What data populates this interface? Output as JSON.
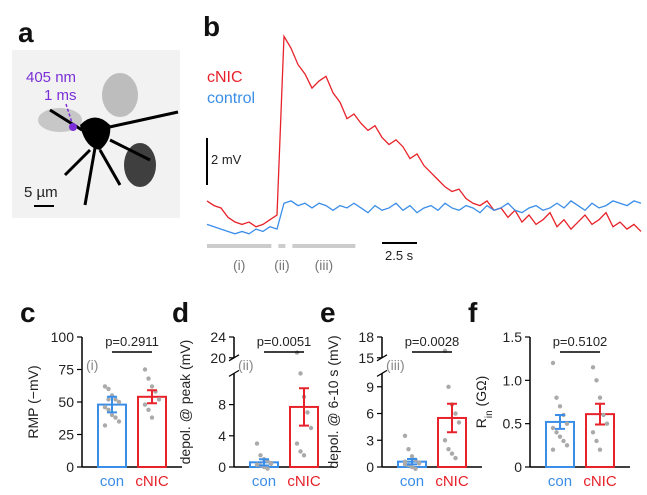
{
  "image_panel": {
    "label": "a",
    "wavelength": "405 nm",
    "duration": "1 ms",
    "scale_bar": "5 µm"
  },
  "chart_data": [
    {
      "type": "trace",
      "panel": "b",
      "x": [
        0,
        0.5,
        1,
        1.5,
        2,
        2.5,
        3,
        3.5,
        4,
        4.5,
        5,
        5.5,
        6,
        6.5,
        7,
        7.5,
        8,
        8.5,
        9,
        9.5,
        10,
        10.5,
        11,
        11.5,
        12,
        12.5,
        13,
        13.5,
        14,
        14.5,
        15,
        15.5,
        16,
        16.5,
        17,
        17.5,
        18,
        18.5,
        19,
        19.5,
        20,
        20.5,
        21,
        21.5,
        22,
        22.5,
        23,
        23.5,
        24,
        24.5,
        25,
        25.5,
        26,
        26.5,
        27,
        27.5,
        28,
        28.5,
        29,
        29.5,
        30,
        30.5,
        31
      ],
      "series": [
        {
          "name": "cNIC",
          "color": "#e8222a",
          "values": [
            0.6,
            0.4,
            0.3,
            -0.1,
            -0.3,
            -0.4,
            -0.3,
            -0.5,
            -0.4,
            -0.2,
            0.0,
            7.6,
            7.1,
            6.4,
            6.0,
            5.4,
            5.7,
            5.9,
            5.2,
            4.8,
            4.1,
            4.3,
            3.9,
            3.6,
            3.8,
            3.3,
            3.0,
            3.2,
            2.9,
            2.4,
            2.6,
            2.1,
            1.8,
            1.5,
            1.2,
            1.0,
            1.1,
            0.7,
            0.5,
            0.4,
            0.6,
            0.2,
            0.3,
            -0.1,
            0.2,
            -0.3,
            0.0,
            -0.4,
            -0.2,
            0.1,
            -0.5,
            -0.2,
            -0.6,
            -0.3,
            0.0,
            -0.4,
            -0.2,
            0.1,
            -0.5,
            -0.3,
            -0.6,
            -0.4,
            -0.7
          ]
        },
        {
          "name": "control",
          "color": "#3b8ee8",
          "values": [
            -0.4,
            -0.5,
            -0.6,
            -0.7,
            -0.8,
            -0.7,
            -0.8,
            -0.6,
            -0.7,
            -0.5,
            -0.6,
            0.5,
            0.6,
            0.4,
            0.5,
            0.3,
            0.5,
            0.4,
            0.2,
            0.4,
            0.3,
            0.5,
            0.3,
            0.1,
            0.4,
            0.2,
            0.3,
            0.5,
            0.2,
            0.4,
            0.1,
            0.3,
            0.4,
            0.2,
            0.5,
            0.3,
            0.2,
            0.4,
            0.3,
            0.1,
            0.4,
            0.2,
            0.3,
            0.5,
            0.2,
            0.1,
            0.3,
            0.4,
            0.2,
            0.3,
            0.5,
            0.3,
            0.6,
            0.4,
            0.2,
            0.5,
            0.3,
            0.4,
            0.6,
            0.5,
            0.4,
            0.6,
            0.5
          ]
        }
      ],
      "scale_y": {
        "value": 2,
        "label": "2 mV"
      },
      "scale_x": {
        "value": 2.5,
        "label": "2.5 s"
      },
      "windows": [
        {
          "label": "(i)",
          "x": [
            0,
            4.6
          ]
        },
        {
          "label": "(ii)",
          "x": [
            5.1,
            5.6
          ]
        },
        {
          "label": "(iii)",
          "x": [
            6.1,
            10.6
          ]
        }
      ]
    },
    {
      "type": "bar",
      "panel": "c",
      "y_label": "RMP (−mV)",
      "categories": [
        "con",
        "cNIC"
      ],
      "colors": [
        "#3b8ee8",
        "#e8222a"
      ],
      "values": [
        48,
        54
      ],
      "errors": [
        6,
        5
      ],
      "point_color": "#aaaaaa",
      "points": [
        [
          62,
          60,
          55,
          52,
          50,
          46,
          44,
          40,
          38,
          35,
          32,
          52
        ],
        [
          75,
          68,
          62,
          58,
          52,
          48,
          44,
          38
        ]
      ],
      "ylim": [
        0,
        100
      ],
      "yticks": [
        0,
        25,
        50,
        75,
        100
      ],
      "p_label": "p=0.2911",
      "annotation": "(i)"
    },
    {
      "type": "bar",
      "panel": "d",
      "y_label": "depol. @ peak (mV)",
      "categories": [
        "con",
        "cNIC"
      ],
      "colors": [
        "#3b8ee8",
        "#e8222a"
      ],
      "values": [
        0.6,
        7.7
      ],
      "errors": [
        0.4,
        2.4
      ],
      "point_color": "#aaaaaa",
      "points": [
        [
          3,
          1.5,
          1,
          0.8,
          0.5,
          0.3,
          0.2,
          0,
          -0.2,
          0.4
        ],
        [
          21,
          12,
          9,
          7,
          5,
          3,
          2,
          1.5
        ]
      ],
      "ylim": [
        0,
        24
      ],
      "ybreak": [
        12,
        20
      ],
      "yticks": [
        0,
        4,
        8,
        20,
        24
      ],
      "p_label": "p=0.0051",
      "annotation": "(ii)"
    },
    {
      "type": "bar",
      "panel": "e",
      "y_label": "depol. @ 6-10 s (mV)",
      "categories": [
        "con",
        "cNIC"
      ],
      "colors": [
        "#3b8ee8",
        "#e8222a"
      ],
      "values": [
        0.6,
        5.5
      ],
      "errors": [
        0.3,
        1.6
      ],
      "point_color": "#aaaaaa",
      "points": [
        [
          3.5,
          2,
          1.2,
          0.8,
          0.5,
          0.3,
          0.2,
          0,
          -0.2,
          0.4,
          0.6
        ],
        [
          16,
          9,
          7,
          6,
          5,
          3,
          2,
          1.5,
          1
        ]
      ],
      "ylim": [
        0,
        18
      ],
      "ybreak": [
        10.5,
        15
      ],
      "yticks": [
        0,
        3,
        6,
        9,
        15,
        18
      ],
      "p_label": "p=0.0028",
      "annotation": "(iii)"
    },
    {
      "type": "bar",
      "panel": "f",
      "y_label": {
        "main": "R",
        "sub": "in",
        "unit": " (GΩ)"
      },
      "categories": [
        "con",
        "cNIC"
      ],
      "colors": [
        "#3b8ee8",
        "#e8222a"
      ],
      "values": [
        0.52,
        0.61
      ],
      "errors": [
        0.08,
        0.12
      ],
      "point_color": "#aaaaaa",
      "points": [
        [
          1.2,
          0.8,
          0.7,
          0.6,
          0.5,
          0.45,
          0.4,
          0.35,
          0.3,
          0.25,
          0.2
        ],
        [
          1.15,
          1.0,
          0.8,
          0.6,
          0.5,
          0.4,
          0.3,
          0.2
        ]
      ],
      "ylim": [
        0,
        1.5
      ],
      "yticks": [
        0,
        0.5,
        {
          "value": 1,
          "label": "1.0"
        },
        1.5
      ],
      "p_label": "p=0.5102"
    }
  ]
}
